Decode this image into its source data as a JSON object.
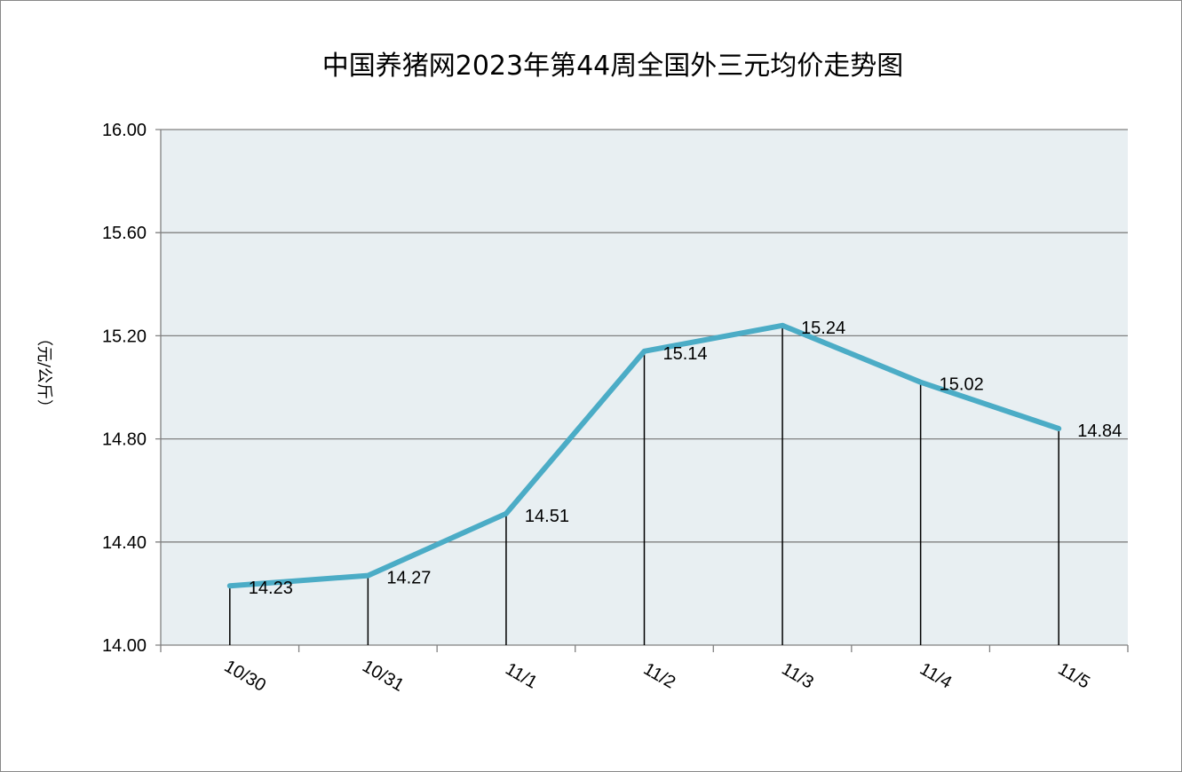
{
  "chart_data": {
    "type": "line",
    "title": "中国养猪网2023年第44周全国外三元均价走势图",
    "ylabel": "（元/公斤）",
    "xlabel": "",
    "categories": [
      "10/30",
      "10/31",
      "11/1",
      "11/2",
      "11/3",
      "11/4",
      "11/5"
    ],
    "series": [
      {
        "values": [
          14.23,
          14.27,
          14.51,
          15.14,
          15.24,
          15.02,
          14.84
        ]
      }
    ],
    "ylim": [
      14.0,
      16.0
    ],
    "yticks": [
      "14.00",
      "14.40",
      "14.80",
      "15.20",
      "15.60",
      "16.00"
    ],
    "data_labels": [
      "14.23",
      "14.27",
      "14.51",
      "15.14",
      "15.24",
      "15.02",
      "14.84"
    ],
    "grid": true,
    "drop_lines": true,
    "colors": {
      "line": "#4BACC6",
      "plot_bg": "#E8EFF2",
      "grid": "#808080"
    }
  }
}
